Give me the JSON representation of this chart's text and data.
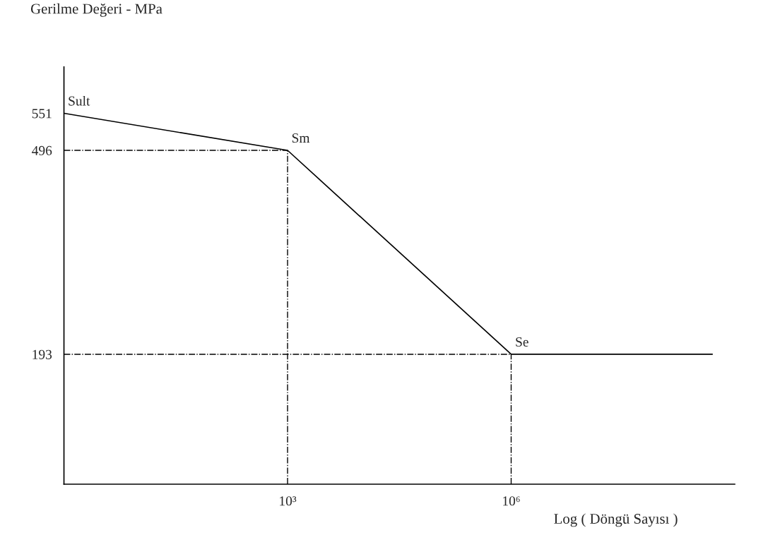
{
  "chart_data": {
    "type": "line",
    "ylabel": "Gerilme Değeri - MPa",
    "xlabel": "Log ( Döngü Sayısı )",
    "log": "x",
    "xlim": [
      1,
      1000000000
    ],
    "ylim": [
      0,
      620
    ],
    "xticks": [
      {
        "value": 1000,
        "label": "10³"
      },
      {
        "value": 1000000,
        "label": "10⁶"
      }
    ],
    "yticks": [
      193,
      496,
      551
    ],
    "series": [
      {
        "x": [
          1,
          1000,
          1000000,
          500000000
        ],
        "values": [
          551,
          496,
          193,
          193
        ],
        "color": "#000000"
      }
    ],
    "ref_lines": [
      {
        "axis": "y",
        "value": 496,
        "line_style": "dashdot",
        "color": "#000000"
      },
      {
        "axis": "x",
        "value": 1000,
        "line_style": "dashdot",
        "color": "#000000"
      },
      {
        "axis": "y",
        "value": 193,
        "line_style": "dashdot",
        "color": "#000000"
      },
      {
        "axis": "x",
        "value": 1000000,
        "line_style": "dashdot",
        "color": "#000000"
      }
    ],
    "annotations": [
      {
        "text": "Sult",
        "x": 1,
        "y": 551
      },
      {
        "text": "Sm",
        "x": 1000,
        "y": 496
      },
      {
        "text": "Se",
        "x": 1000000,
        "y": 193
      }
    ],
    "grid": false,
    "legend": false,
    "marker": "none",
    "line_style": "solid"
  }
}
